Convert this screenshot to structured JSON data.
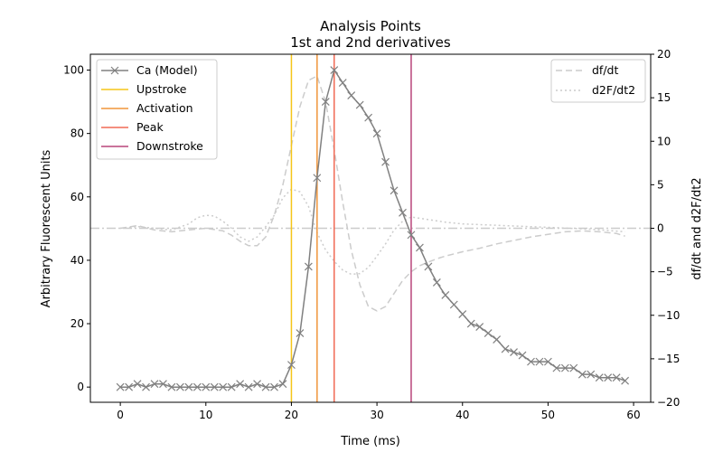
{
  "chart_data": {
    "type": "line",
    "title": "Analysis Points",
    "subtitle": "1st and 2nd derivatives",
    "xlabel": "Time (ms)",
    "ylabel": "Arbitrary Fluorescent Units",
    "y2label": "df/dt and d2F/dt2",
    "xlim": [
      -3.5,
      62
    ],
    "ylim": [
      -4.8,
      105
    ],
    "y2lim": [
      -20,
      20
    ],
    "xticks": [
      0,
      10,
      20,
      30,
      40,
      50,
      60
    ],
    "yticks": [
      0,
      20,
      40,
      60,
      80,
      100
    ],
    "y2ticks": [
      -20,
      -15,
      -10,
      -5,
      0,
      5,
      10,
      15,
      20
    ],
    "grid": false,
    "legend_left_position": "top-left",
    "legend_right_position": "top-right",
    "series": [
      {
        "name": "Ca (Model)",
        "axis": "left",
        "color": "#808080",
        "marker": "x",
        "x": [
          0,
          1,
          2,
          3,
          4,
          5,
          6,
          7,
          8,
          9,
          10,
          11,
          12,
          13,
          14,
          15,
          16,
          17,
          18,
          19,
          20,
          21,
          22,
          23,
          24,
          25,
          26,
          27,
          28,
          29,
          30,
          31,
          32,
          33,
          34,
          35,
          36,
          37,
          38,
          39,
          40,
          41,
          42,
          43,
          44,
          45,
          46,
          47,
          48,
          49,
          50,
          51,
          52,
          53,
          54,
          55,
          56,
          57,
          58,
          59
        ],
        "y": [
          0,
          0,
          1,
          0,
          1,
          1,
          0,
          0,
          0,
          0,
          0,
          0,
          0,
          0,
          1,
          0,
          1,
          0,
          0,
          1,
          7,
          17,
          38,
          66,
          90,
          100,
          96,
          92,
          89,
          85,
          80,
          71,
          62,
          55,
          48,
          44,
          38,
          33,
          29,
          26,
          23,
          20,
          19,
          17,
          15,
          12,
          11,
          10,
          8,
          8,
          8,
          6,
          6,
          6,
          4,
          4,
          3,
          3,
          3,
          2
        ]
      },
      {
        "name": "df/dt",
        "axis": "right",
        "color": "#cccccc",
        "dash": "dashed",
        "x": [
          0,
          2,
          4,
          6,
          8,
          10,
          12,
          13,
          14,
          15,
          16,
          17,
          18,
          19,
          20,
          21,
          22,
          23,
          24,
          25,
          26,
          27,
          28,
          29,
          30,
          31,
          32,
          33,
          34,
          35,
          36,
          37,
          38,
          40,
          42,
          44,
          46,
          48,
          50,
          52,
          54,
          56,
          58,
          59
        ],
        "y": [
          0,
          0.3,
          -0.2,
          -0.4,
          -0.2,
          0,
          -0.3,
          -0.8,
          -1.5,
          -2,
          -2,
          -1,
          1.5,
          5,
          9.5,
          14,
          17,
          17.5,
          14.5,
          9,
          3,
          -2.5,
          -6.5,
          -9,
          -9.5,
          -9,
          -7.5,
          -6,
          -5,
          -4.3,
          -3.9,
          -3.5,
          -3.2,
          -2.7,
          -2.3,
          -1.8,
          -1.4,
          -1,
          -0.7,
          -0.4,
          -0.3,
          -0.4,
          -0.6,
          -0.9
        ]
      },
      {
        "name": "d2F/dt2",
        "axis": "right",
        "color": "#cccccc",
        "dash": "dotted",
        "x": [
          0,
          2,
          4,
          6,
          8,
          9,
          10,
          11,
          12,
          13,
          14,
          15,
          16,
          17,
          18,
          19,
          20,
          21,
          22,
          23,
          24,
          25,
          26,
          27,
          28,
          29,
          30,
          31,
          32,
          33,
          34,
          36,
          38,
          40,
          45,
          50,
          55,
          59
        ],
        "y": [
          0,
          0.2,
          0,
          -0.2,
          0.5,
          1.2,
          1.5,
          1.4,
          0.8,
          0,
          -1,
          -1.5,
          -1,
          0.2,
          1.5,
          3.5,
          4.5,
          4.2,
          2.5,
          -0.5,
          -2.5,
          -3.8,
          -4.8,
          -5.3,
          -5.2,
          -4.5,
          -3.2,
          -1.8,
          -0.2,
          0.8,
          1.3,
          1.0,
          0.7,
          0.5,
          0.3,
          0.1,
          -0.1,
          -0.4
        ]
      }
    ],
    "vlines": [
      {
        "name": "Upstroke",
        "x": 20,
        "color": "#f5c518"
      },
      {
        "name": "Activation",
        "x": 23,
        "color": "#f0953a"
      },
      {
        "name": "Peak",
        "x": 25,
        "color": "#f06a55"
      },
      {
        "name": "Downstroke",
        "x": 34,
        "color": "#b8457a"
      }
    ],
    "zero_line_color": "#cccccc"
  }
}
